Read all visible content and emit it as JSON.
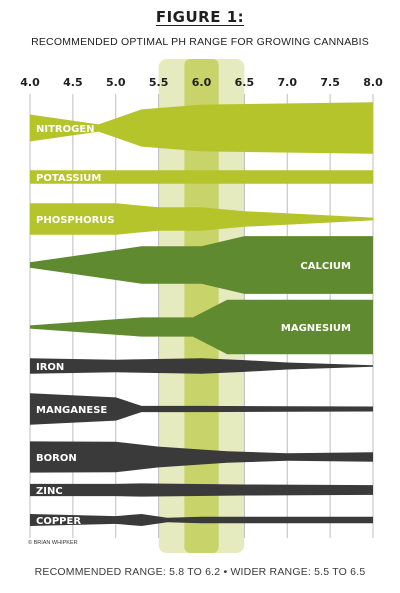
{
  "chart_data": {
    "type": "area",
    "title": "FIGURE 1:",
    "subtitle": "RECOMMENDED OPTIMAL PH RANGE FOR GROWING CANNABIS",
    "x_ticks": [
      "4.0",
      "4.5",
      "5.0",
      "5.5",
      "6.0",
      "6.5",
      "7.0",
      "7.5",
      "8.0"
    ],
    "xlim": [
      4.0,
      8.0
    ],
    "recommended_range": [
      5.8,
      6.2
    ],
    "wider_range": [
      5.5,
      6.5
    ],
    "colors": {
      "light_green": "#b6c42c",
      "dark_green": "#5f8a2f",
      "dark_gray": "#3a3a3a",
      "band_outer": "#e6ebbf",
      "band_inner": "#c8d46a"
    },
    "series": [
      {
        "name": "NITROGEN",
        "color": "#b6c42c",
        "label_align": "left",
        "x": [
          4.0,
          4.8,
          5.3,
          6.0,
          8.0
        ],
        "thickness": [
          0.45,
          0.12,
          0.62,
          0.78,
          0.86
        ]
      },
      {
        "name": "POTASSIUM",
        "color": "#b6c42c",
        "label_align": "left",
        "x": [
          4.0,
          8.0
        ],
        "thickness": [
          0.42,
          0.42
        ]
      },
      {
        "name": "PHOSPHORUS",
        "color": "#b6c42c",
        "label_align": "left",
        "x": [
          4.0,
          5.0,
          5.5,
          6.0,
          6.5,
          8.0
        ],
        "thickness": [
          0.56,
          0.56,
          0.42,
          0.42,
          0.28,
          0.05
        ]
      },
      {
        "name": "CALCIUM",
        "color": "#5f8a2f",
        "label_align": "right",
        "x": [
          4.0,
          5.3,
          6.0,
          6.5,
          8.0
        ],
        "thickness": [
          0.08,
          0.55,
          0.55,
          0.85,
          0.85
        ]
      },
      {
        "name": "MAGNESIUM",
        "color": "#5f8a2f",
        "label_align": "right",
        "x": [
          4.0,
          5.3,
          5.9,
          6.3,
          8.0
        ],
        "thickness": [
          0.05,
          0.3,
          0.3,
          0.85,
          0.85
        ]
      },
      {
        "name": "IRON",
        "color": "#3a3a3a",
        "label_align": "left",
        "x": [
          4.0,
          5.0,
          6.0,
          6.5,
          7.0,
          8.0
        ],
        "thickness": [
          0.55,
          0.45,
          0.55,
          0.42,
          0.25,
          0.05
        ]
      },
      {
        "name": "MANGANESE",
        "color": "#3a3a3a",
        "label_align": "left",
        "x": [
          4.0,
          5.0,
          5.3,
          6.0,
          8.0
        ],
        "thickness": [
          0.75,
          0.55,
          0.15,
          0.15,
          0.12
        ]
      },
      {
        "name": "BORON",
        "color": "#3a3a3a",
        "label_align": "left",
        "x": [
          4.0,
          5.0,
          5.5,
          6.3,
          7.0,
          8.0
        ],
        "thickness": [
          0.82,
          0.8,
          0.55,
          0.3,
          0.2,
          0.25
        ]
      },
      {
        "name": "ZINC",
        "color": "#3a3a3a",
        "label_align": "left",
        "x": [
          4.0,
          5.0,
          5.3,
          6.5,
          8.0
        ],
        "thickness": [
          0.55,
          0.55,
          0.6,
          0.5,
          0.45
        ]
      },
      {
        "name": "COPPER",
        "color": "#3a3a3a",
        "label_align": "left",
        "x": [
          4.0,
          5.0,
          5.3,
          5.6,
          6.0,
          8.0
        ],
        "thickness": [
          0.55,
          0.35,
          0.55,
          0.2,
          0.3,
          0.3
        ]
      }
    ]
  },
  "credit": "© BRIAN WHIPKER",
  "footer": "RECOMMENDED RANGE: 5.8 TO 6.2 • WIDER RANGE: 5.5 TO 6.5"
}
